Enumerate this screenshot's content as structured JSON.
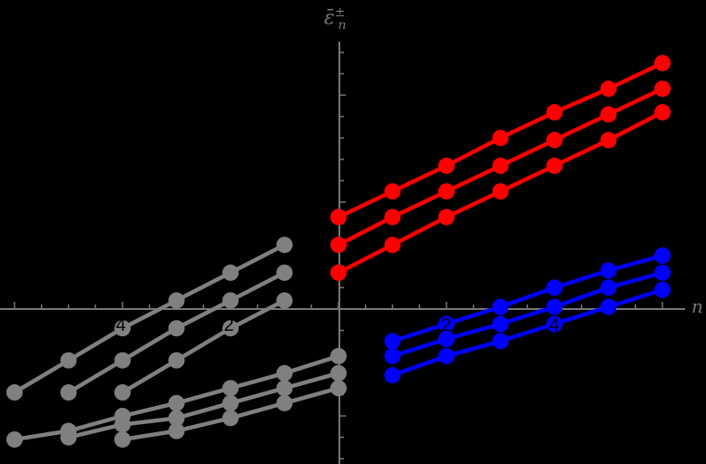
{
  "chart_data": {
    "type": "line",
    "title": "",
    "xlabel": "n",
    "ylabel": "ε̄ₙ^±",
    "background": "#000000",
    "axis_color": "#777777",
    "x_ticks": [
      -4,
      -2,
      2,
      4
    ],
    "x_tick_labels": [
      "-4",
      "-2",
      "2",
      "4"
    ],
    "xlim": [
      -6.2,
      6.5
    ],
    "ylim": [
      -0.72,
      1.26
    ],
    "grid": false,
    "legend": null,
    "series": [
      {
        "name": "red-1",
        "color": "#ff0000",
        "x": [
          0,
          1,
          2,
          3,
          4,
          5,
          6
        ],
        "y": [
          0.43,
          0.55,
          0.67,
          0.8,
          0.92,
          1.03,
          1.15
        ]
      },
      {
        "name": "red-2",
        "color": "#ff0000",
        "x": [
          0,
          1,
          2,
          3,
          4,
          5,
          6
        ],
        "y": [
          0.3,
          0.43,
          0.55,
          0.67,
          0.79,
          0.91,
          1.03
        ]
      },
      {
        "name": "red-3",
        "color": "#ff0000",
        "x": [
          0,
          1,
          2,
          3,
          4,
          5,
          6
        ],
        "y": [
          0.17,
          0.3,
          0.43,
          0.55,
          0.67,
          0.79,
          0.92
        ]
      },
      {
        "name": "blue-1",
        "color": "#0000ff",
        "x": [
          1,
          2,
          3,
          4,
          5,
          6
        ],
        "y": [
          -0.15,
          -0.07,
          0.01,
          0.1,
          0.18,
          0.25
        ]
      },
      {
        "name": "blue-2",
        "color": "#0000ff",
        "x": [
          1,
          2,
          3,
          4,
          5,
          6
        ],
        "y": [
          -0.22,
          -0.14,
          -0.07,
          0.01,
          0.1,
          0.17
        ]
      },
      {
        "name": "blue-3",
        "color": "#0000ff",
        "x": [
          1,
          2,
          3,
          4,
          5,
          6
        ],
        "y": [
          -0.31,
          -0.22,
          -0.15,
          -0.07,
          0.01,
          0.09
        ]
      },
      {
        "name": "gray-upper-1",
        "color": "#808080",
        "x": [
          -6,
          -5,
          -4,
          -3,
          -2,
          -1
        ],
        "y": [
          -0.39,
          -0.24,
          -0.09,
          0.04,
          0.17,
          0.3
        ]
      },
      {
        "name": "gray-upper-2",
        "color": "#808080",
        "x": [
          -5,
          -4,
          -3,
          -2,
          -1
        ],
        "y": [
          -0.39,
          -0.24,
          -0.09,
          0.04,
          0.17
        ]
      },
      {
        "name": "gray-upper-3",
        "color": "#808080",
        "x": [
          -4,
          -3,
          -2,
          -1
        ],
        "y": [
          -0.39,
          -0.24,
          -0.09,
          0.04
        ]
      },
      {
        "name": "gray-lower-1",
        "color": "#808080",
        "x": [
          -6,
          -5,
          -4,
          -3,
          -2,
          -1,
          0
        ],
        "y": [
          -0.61,
          -0.57,
          -0.5,
          -0.44,
          -0.37,
          -0.3,
          -0.22
        ]
      },
      {
        "name": "gray-lower-2",
        "color": "#808080",
        "x": [
          -5,
          -4,
          -3,
          -2,
          -1,
          0
        ],
        "y": [
          -0.6,
          -0.54,
          -0.51,
          -0.44,
          -0.37,
          -0.3
        ]
      },
      {
        "name": "gray-lower-3",
        "color": "#808080",
        "x": [
          -4,
          -3,
          -2,
          -1,
          0
        ],
        "y": [
          -0.61,
          -0.57,
          -0.51,
          -0.44,
          -0.37
        ]
      }
    ]
  },
  "axes": {
    "x_label": "n",
    "y_label": "ε̄",
    "y_label_sup": "±",
    "y_label_sub": "n"
  }
}
